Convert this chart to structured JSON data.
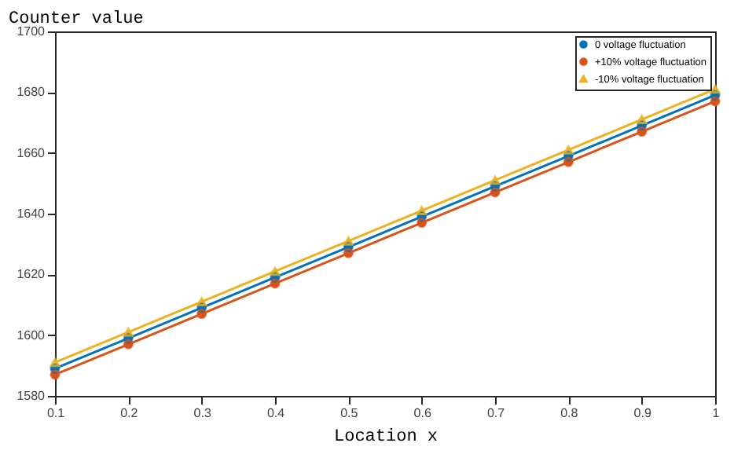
{
  "chart_data": {
    "type": "line",
    "ylabel": "Counter value",
    "xlabel": "Location x",
    "x": [
      0.1,
      0.2,
      0.3,
      0.4,
      0.5,
      0.6,
      0.7,
      0.8,
      0.9,
      1
    ],
    "series": [
      {
        "name": "0 voltage fluctuation",
        "color": "#0072bd",
        "marker": "circle",
        "values": [
          1589,
          1599,
          1609,
          1619,
          1629,
          1639,
          1649,
          1659,
          1669,
          1679
        ]
      },
      {
        "name": "+10% voltage fluctuation",
        "color": "#d95319",
        "marker": "circle",
        "values": [
          1587,
          1597,
          1607,
          1617,
          1627,
          1637,
          1647,
          1657,
          1667,
          1677
        ]
      },
      {
        "name": "-10% voltage fluctuation",
        "color": "#edb120",
        "marker": "triangle",
        "values": [
          1591,
          1601,
          1611,
          1621,
          1631,
          1641,
          1651,
          1661,
          1671,
          1681
        ]
      }
    ],
    "xlim": [
      0.1,
      1
    ],
    "xticks": [
      0.1,
      0.2,
      0.3,
      0.4,
      0.5,
      0.6,
      0.7,
      0.8,
      0.9,
      1
    ],
    "ylim": [
      1580,
      1700
    ],
    "yticks": [
      1580,
      1600,
      1620,
      1640,
      1660,
      1680,
      1700
    ],
    "legend": "top right",
    "grid": false
  }
}
